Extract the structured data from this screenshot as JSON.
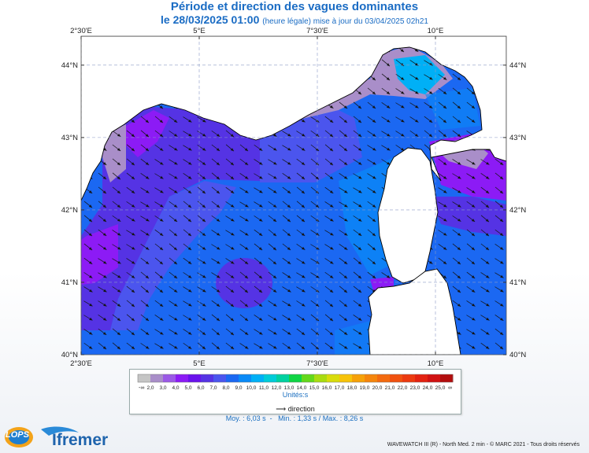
{
  "header": {
    "title": "Période et direction des vagues dominantes",
    "date": "le 28/03/2025 01:00",
    "update": "(heure légale) mise à jour du 03/04/2025 02h21"
  },
  "map": {
    "lon_ticks": [
      "2°30'E",
      "5°E",
      "7°30'E",
      "10°E"
    ],
    "lat_ticks": [
      "44°N",
      "43°N",
      "42°N",
      "41°N",
      "40°N"
    ],
    "lon_range": [
      2.5,
      11.5
    ],
    "lat_range": [
      40.0,
      44.4
    ],
    "land_color": "#ffffff",
    "coast_color": "#000000",
    "grid_color": "#9aa6c8",
    "dominant_direction": "south-east"
  },
  "legend": {
    "values": [
      "2,0",
      "3,0",
      "4,0",
      "5,0",
      "6,0",
      "7,0",
      "8,0",
      "9,0",
      "10,0",
      "11,0",
      "12,0",
      "13,0",
      "14,0",
      "15,0",
      "16,0",
      "17,0",
      "18,0",
      "19,0",
      "20,0",
      "21,0",
      "22,0",
      "23,0",
      "24,0",
      "25,0"
    ],
    "less_symbol": "-∞",
    "more_symbol": "∞",
    "colors": [
      "#c5c5c5",
      "#a98ec9",
      "#9b59e6",
      "#8c1bf5",
      "#6a12ec",
      "#5533e4",
      "#4b55ee",
      "#1b68f2",
      "#0a8af7",
      "#00b0f6",
      "#00ccd8",
      "#00d1a0",
      "#10d545",
      "#64d81a",
      "#a9dc10",
      "#d9dc0c",
      "#f7c30a",
      "#f6a109",
      "#f5850c",
      "#f36a0f",
      "#f0510f",
      "#ec3a10",
      "#e32211",
      "#d11212",
      "#b30d0d"
    ],
    "unit": "Unités",
    "direction_label": "direction"
  },
  "stats": {
    "mean": "Moy. : 6,03 s",
    "min": "Min. : 1,33 s",
    "max": "Max. : 8,26 s"
  },
  "footer": {
    "copyright": "WAVEWATCH III (R) - North Med. 2 min - © MARC 2021 - Tous droits réservés",
    "logo_lops": "LOPS",
    "logo_ifremer": "Ifremer"
  }
}
